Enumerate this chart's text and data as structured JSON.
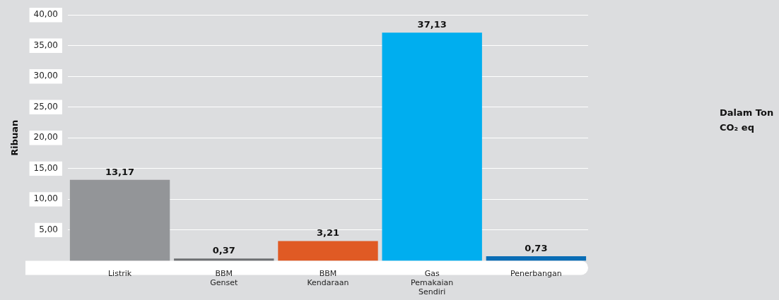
{
  "chart_data": {
    "type": "bar",
    "ylabel": "Ribuan",
    "categories": [
      "Listrik",
      "BBM Genset",
      "BBM Kendaraan",
      "Gas Pemakaian Sendiri",
      "Penerbangan"
    ],
    "values": [
      13.17,
      0.37,
      3.21,
      37.13,
      0.73
    ],
    "colors": [
      "#939598",
      "#6d6e71",
      "#e05a24",
      "#00aeef",
      "#0a6db5"
    ],
    "value_labels": [
      "13,17",
      "0,37",
      "3,21",
      "37,13",
      "0,73"
    ],
    "ylim": [
      0,
      40
    ],
    "yticks": [
      {
        "value": 5,
        "label": "5,00"
      },
      {
        "value": 10,
        "label": "10,00"
      },
      {
        "value": 15,
        "label": "15,00"
      },
      {
        "value": 20,
        "label": "20,00"
      },
      {
        "value": 25,
        "label": "25,00"
      },
      {
        "value": 30,
        "label": "30,00"
      },
      {
        "value": 35,
        "label": "35,00"
      },
      {
        "value": 40,
        "label": "40,00"
      }
    ],
    "grid": "y",
    "legend": false,
    "annotations": [
      "Dalam Ton CO₂ eq"
    ]
  }
}
